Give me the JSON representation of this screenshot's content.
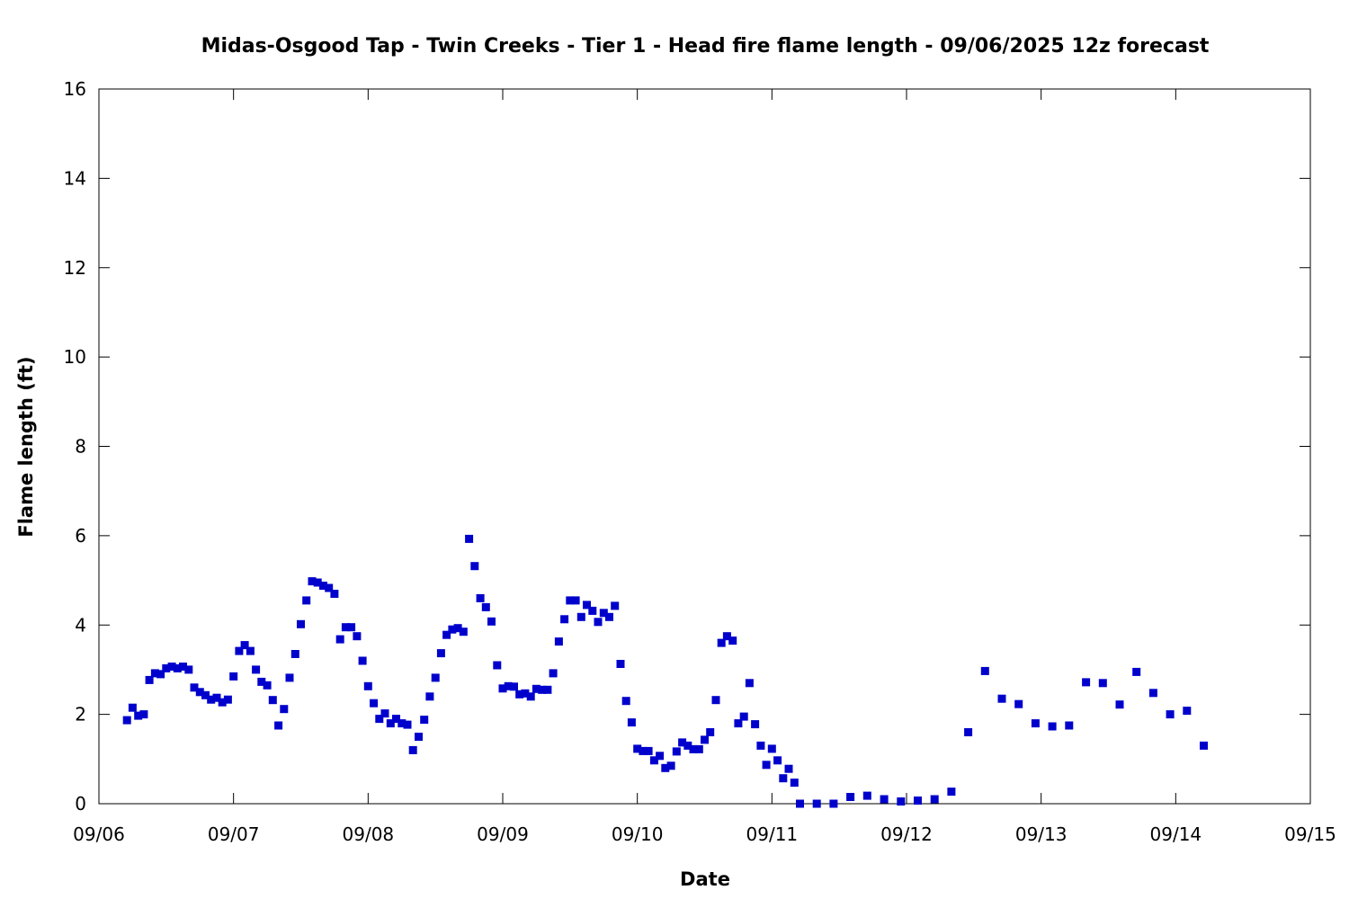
{
  "chart_data": {
    "type": "scatter",
    "title": "Midas-Osgood Tap - Twin Creeks - Tier 1 - Head fire flame length - 09/06/2025 12z forecast",
    "xlabel": "Date",
    "ylabel": "Flame length (ft)",
    "xlim": [
      "2025-09-06T00:00",
      "2025-09-15T00:00"
    ],
    "ylim": [
      0,
      16
    ],
    "x_ticks": [
      "09/06",
      "09/07",
      "09/08",
      "09/09",
      "09/10",
      "09/11",
      "09/12",
      "09/13",
      "09/14",
      "09/15"
    ],
    "y_ticks": [
      "0",
      "2",
      "4",
      "6",
      "8",
      "10",
      "12",
      "14",
      "16"
    ],
    "grid": false,
    "legend": false,
    "marker_color": "#0000cc",
    "series": [
      {
        "points": [
          [
            "2025-09-06T05:00",
            1.87
          ],
          [
            "2025-09-06T06:00",
            2.15
          ],
          [
            "2025-09-06T07:00",
            1.97
          ],
          [
            "2025-09-06T08:00",
            2.0
          ],
          [
            "2025-09-06T09:00",
            2.77
          ],
          [
            "2025-09-06T10:00",
            2.92
          ],
          [
            "2025-09-06T11:00",
            2.9
          ],
          [
            "2025-09-06T12:00",
            3.03
          ],
          [
            "2025-09-06T13:00",
            3.07
          ],
          [
            "2025-09-06T14:00",
            3.03
          ],
          [
            "2025-09-06T15:00",
            3.07
          ],
          [
            "2025-09-06T16:00",
            3.0
          ],
          [
            "2025-09-06T17:00",
            2.6
          ],
          [
            "2025-09-06T18:00",
            2.5
          ],
          [
            "2025-09-06T19:00",
            2.43
          ],
          [
            "2025-09-06T20:00",
            2.33
          ],
          [
            "2025-09-06T21:00",
            2.37
          ],
          [
            "2025-09-06T22:00",
            2.27
          ],
          [
            "2025-09-06T23:00",
            2.33
          ],
          [
            "2025-09-07T00:00",
            2.85
          ],
          [
            "2025-09-07T01:00",
            3.42
          ],
          [
            "2025-09-07T02:00",
            3.55
          ],
          [
            "2025-09-07T03:00",
            3.42
          ],
          [
            "2025-09-07T04:00",
            3.0
          ],
          [
            "2025-09-07T05:00",
            2.73
          ],
          [
            "2025-09-07T06:00",
            2.65
          ],
          [
            "2025-09-07T07:00",
            2.32
          ],
          [
            "2025-09-07T08:00",
            1.75
          ],
          [
            "2025-09-07T09:00",
            2.12
          ],
          [
            "2025-09-07T10:00",
            2.82
          ],
          [
            "2025-09-07T11:00",
            3.35
          ],
          [
            "2025-09-07T12:00",
            4.02
          ],
          [
            "2025-09-07T13:00",
            4.55
          ],
          [
            "2025-09-07T14:00",
            4.98
          ],
          [
            "2025-09-07T15:00",
            4.95
          ],
          [
            "2025-09-07T16:00",
            4.88
          ],
          [
            "2025-09-07T17:00",
            4.83
          ],
          [
            "2025-09-07T18:00",
            4.7
          ],
          [
            "2025-09-07T19:00",
            3.68
          ],
          [
            "2025-09-07T20:00",
            3.95
          ],
          [
            "2025-09-07T21:00",
            3.95
          ],
          [
            "2025-09-07T22:00",
            3.75
          ],
          [
            "2025-09-07T23:00",
            3.2
          ],
          [
            "2025-09-08T00:00",
            2.63
          ],
          [
            "2025-09-08T01:00",
            2.25
          ],
          [
            "2025-09-08T02:00",
            1.9
          ],
          [
            "2025-09-08T03:00",
            2.02
          ],
          [
            "2025-09-08T04:00",
            1.8
          ],
          [
            "2025-09-08T05:00",
            1.9
          ],
          [
            "2025-09-08T06:00",
            1.8
          ],
          [
            "2025-09-08T07:00",
            1.77
          ],
          [
            "2025-09-08T08:00",
            1.2
          ],
          [
            "2025-09-08T09:00",
            1.5
          ],
          [
            "2025-09-08T10:00",
            1.88
          ],
          [
            "2025-09-08T11:00",
            2.4
          ],
          [
            "2025-09-08T12:00",
            2.82
          ],
          [
            "2025-09-08T13:00",
            3.37
          ],
          [
            "2025-09-08T14:00",
            3.78
          ],
          [
            "2025-09-08T15:00",
            3.9
          ],
          [
            "2025-09-08T16:00",
            3.93
          ],
          [
            "2025-09-08T17:00",
            3.85
          ],
          [
            "2025-09-08T18:00",
            5.93
          ],
          [
            "2025-09-08T19:00",
            5.32
          ],
          [
            "2025-09-08T20:00",
            4.6
          ],
          [
            "2025-09-08T21:00",
            4.4
          ],
          [
            "2025-09-08T22:00",
            4.08
          ],
          [
            "2025-09-08T23:00",
            3.1
          ],
          [
            "2025-09-09T00:00",
            2.58
          ],
          [
            "2025-09-09T01:00",
            2.63
          ],
          [
            "2025-09-09T02:00",
            2.62
          ],
          [
            "2025-09-09T03:00",
            2.45
          ],
          [
            "2025-09-09T04:00",
            2.47
          ],
          [
            "2025-09-09T05:00",
            2.4
          ],
          [
            "2025-09-09T06:00",
            2.57
          ],
          [
            "2025-09-09T07:00",
            2.55
          ],
          [
            "2025-09-09T08:00",
            2.55
          ],
          [
            "2025-09-09T09:00",
            2.92
          ],
          [
            "2025-09-09T10:00",
            3.63
          ],
          [
            "2025-09-09T11:00",
            4.13
          ],
          [
            "2025-09-09T12:00",
            4.55
          ],
          [
            "2025-09-09T13:00",
            4.55
          ],
          [
            "2025-09-09T14:00",
            4.18
          ],
          [
            "2025-09-09T15:00",
            4.45
          ],
          [
            "2025-09-09T16:00",
            4.32
          ],
          [
            "2025-09-09T17:00",
            4.07
          ],
          [
            "2025-09-09T18:00",
            4.27
          ],
          [
            "2025-09-09T19:00",
            4.18
          ],
          [
            "2025-09-09T20:00",
            4.43
          ],
          [
            "2025-09-09T21:00",
            3.13
          ],
          [
            "2025-09-09T22:00",
            2.3
          ],
          [
            "2025-09-09T23:00",
            1.82
          ],
          [
            "2025-09-10T00:00",
            1.23
          ],
          [
            "2025-09-10T01:00",
            1.18
          ],
          [
            "2025-09-10T02:00",
            1.18
          ],
          [
            "2025-09-10T03:00",
            0.97
          ],
          [
            "2025-09-10T04:00",
            1.07
          ],
          [
            "2025-09-10T05:00",
            0.8
          ],
          [
            "2025-09-10T06:00",
            0.85
          ],
          [
            "2025-09-10T07:00",
            1.17
          ],
          [
            "2025-09-10T08:00",
            1.37
          ],
          [
            "2025-09-10T09:00",
            1.3
          ],
          [
            "2025-09-10T10:00",
            1.22
          ],
          [
            "2025-09-10T11:00",
            1.22
          ],
          [
            "2025-09-10T12:00",
            1.43
          ],
          [
            "2025-09-10T13:00",
            1.6
          ],
          [
            "2025-09-10T14:00",
            2.32
          ],
          [
            "2025-09-10T15:00",
            3.6
          ],
          [
            "2025-09-10T16:00",
            3.75
          ],
          [
            "2025-09-10T17:00",
            3.65
          ],
          [
            "2025-09-10T18:00",
            1.8
          ],
          [
            "2025-09-10T19:00",
            1.95
          ],
          [
            "2025-09-10T20:00",
            2.7
          ],
          [
            "2025-09-10T21:00",
            1.78
          ],
          [
            "2025-09-10T22:00",
            1.3
          ],
          [
            "2025-09-10T23:00",
            0.87
          ],
          [
            "2025-09-11T00:00",
            1.23
          ],
          [
            "2025-09-11T01:00",
            0.97
          ],
          [
            "2025-09-11T02:00",
            0.57
          ],
          [
            "2025-09-11T03:00",
            0.78
          ],
          [
            "2025-09-11T04:00",
            0.47
          ],
          [
            "2025-09-11T05:00",
            0.0
          ],
          [
            "2025-09-11T08:00",
            0.0
          ],
          [
            "2025-09-11T11:00",
            0.0
          ],
          [
            "2025-09-11T14:00",
            0.15
          ],
          [
            "2025-09-11T17:00",
            0.18
          ],
          [
            "2025-09-11T20:00",
            0.1
          ],
          [
            "2025-09-11T23:00",
            0.05
          ],
          [
            "2025-09-12T02:00",
            0.07
          ],
          [
            "2025-09-12T05:00",
            0.1
          ],
          [
            "2025-09-12T08:00",
            0.27
          ],
          [
            "2025-09-12T11:00",
            1.6
          ],
          [
            "2025-09-12T14:00",
            2.97
          ],
          [
            "2025-09-12T17:00",
            2.35
          ],
          [
            "2025-09-12T20:00",
            2.23
          ],
          [
            "2025-09-12T23:00",
            1.8
          ],
          [
            "2025-09-13T02:00",
            1.73
          ],
          [
            "2025-09-13T05:00",
            1.75
          ],
          [
            "2025-09-13T08:00",
            2.72
          ],
          [
            "2025-09-13T11:00",
            2.7
          ],
          [
            "2025-09-13T14:00",
            2.22
          ],
          [
            "2025-09-13T17:00",
            2.95
          ],
          [
            "2025-09-13T20:00",
            2.48
          ],
          [
            "2025-09-13T23:00",
            2.0
          ],
          [
            "2025-09-14T02:00",
            2.08
          ],
          [
            "2025-09-14T05:00",
            1.3
          ]
        ]
      }
    ]
  }
}
